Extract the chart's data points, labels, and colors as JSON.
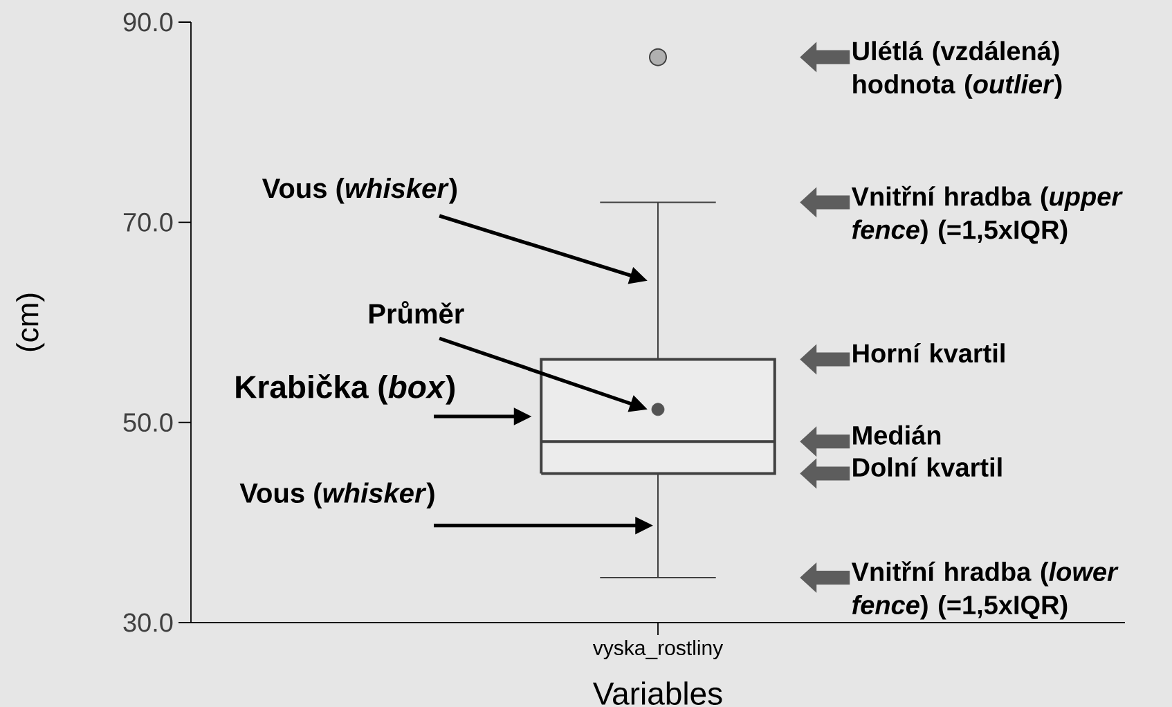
{
  "chart_data": {
    "type": "box",
    "categories": [
      "vyska_rostliny"
    ],
    "color": "#ececec",
    "boxes": [
      {
        "low": 34.5,
        "q1": 44.9,
        "median": 48.1,
        "q3": 56.3,
        "high": 72.0,
        "mean": 51.3,
        "outliers": [
          86.5
        ]
      }
    ],
    "xlabel": "Variables",
    "ylabel": "(cm)",
    "ylim": [
      30,
      90
    ],
    "yticks": [
      {
        "value": 30,
        "label": "30.0"
      },
      {
        "value": 50,
        "label": "50.0"
      },
      {
        "value": 70,
        "label": "70.0"
      },
      {
        "value": 90,
        "label": "90.0"
      }
    ],
    "annotations": [
      "Ulétlá (vzdálená) hodnota (*outlier*)",
      "Vnitřní hradba (*upper fence*) (=1,5xIQR)",
      "Horní kvartil",
      "Medián",
      "Dolní kvartil",
      "Vnitřní hradba (*lower fence*) (=1,5xIQR)",
      "Vous (*whisker*)",
      "Průměr",
      "Krabička (*box*)",
      "Vous (*whisker*)"
    ]
  }
}
